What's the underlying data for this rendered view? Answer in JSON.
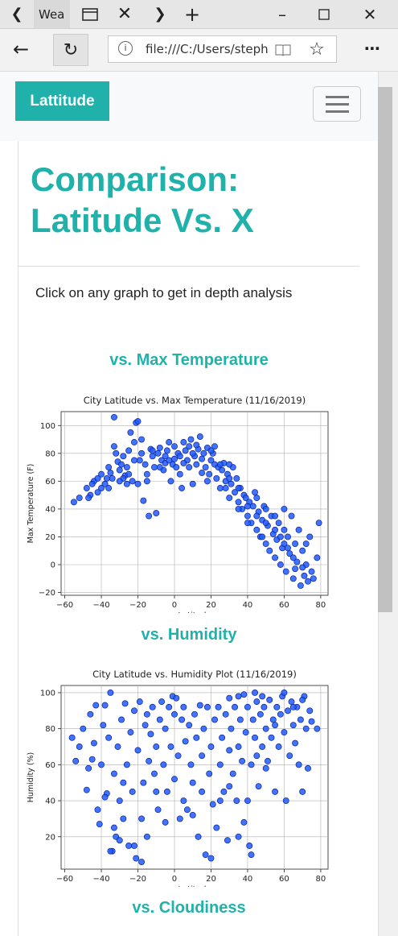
{
  "browser": {
    "tab_title": "Wea",
    "url": "file:///C:/Users/steph"
  },
  "navbar": {
    "brand": "Lattitude"
  },
  "page": {
    "title": "Comparison: Latitude Vs. X",
    "intro": "Click on any graph to get in depth analysis"
  },
  "sections": [
    {
      "heading": "vs. Max Temperature"
    },
    {
      "heading": "vs. Humidity"
    },
    {
      "heading": "vs. Cloudiness"
    }
  ],
  "colors": {
    "accent": "#20b2aa",
    "point": "#1f5cff"
  },
  "chart_data": [
    {
      "type": "scatter",
      "title": "City Latitude vs. Max Temperature (11/16/2019)",
      "xlabel": "Latitude",
      "ylabel": "Max Temperature (F)",
      "xlim": [
        -62,
        84
      ],
      "ylim": [
        -22,
        110
      ],
      "xticks": [
        -60,
        -40,
        -20,
        0,
        20,
        40,
        60,
        80
      ],
      "yticks": [
        -20,
        0,
        20,
        40,
        60,
        80,
        100
      ],
      "grid": true,
      "points": [
        [
          -55,
          45
        ],
        [
          -52,
          48
        ],
        [
          -48,
          55
        ],
        [
          -46,
          50
        ],
        [
          -44,
          60
        ],
        [
          -42,
          62
        ],
        [
          -40,
          65
        ],
        [
          -38,
          58
        ],
        [
          -36,
          70
        ],
        [
          -35,
          66
        ],
        [
          -34,
          62
        ],
        [
          -33,
          106
        ],
        [
          -32,
          80
        ],
        [
          -31,
          74
        ],
        [
          -30,
          68
        ],
        [
          -29,
          72
        ],
        [
          -28,
          78
        ],
        [
          -27,
          64
        ],
        [
          -26,
          70
        ],
        [
          -25,
          82
        ],
        [
          -24,
          95
        ],
        [
          -23,
          60
        ],
        [
          -22,
          88
        ],
        [
          -21,
          102
        ],
        [
          -20,
          103
        ],
        [
          -19,
          75
        ],
        [
          -18,
          80
        ],
        [
          -17,
          46
        ],
        [
          -16,
          72
        ],
        [
          -15,
          65
        ],
        [
          -14,
          35
        ],
        [
          -13,
          83
        ],
        [
          -12,
          78
        ],
        [
          -11,
          70
        ],
        [
          -10,
          37
        ],
        [
          -9,
          80
        ],
        [
          -8,
          84
        ],
        [
          -7,
          75
        ],
        [
          -6,
          68
        ],
        [
          -5,
          78
        ],
        [
          -4,
          82
        ],
        [
          -3,
          88
        ],
        [
          -2,
          60
        ],
        [
          -1,
          72
        ],
        [
          0,
          85
        ],
        [
          1,
          70
        ],
        [
          2,
          80
        ],
        [
          3,
          78
        ],
        [
          4,
          55
        ],
        [
          5,
          88
        ],
        [
          6,
          82
        ],
        [
          7,
          75
        ],
        [
          8,
          85
        ],
        [
          9,
          90
        ],
        [
          10,
          58
        ],
        [
          11,
          78
        ],
        [
          12,
          72
        ],
        [
          13,
          83
        ],
        [
          14,
          92
        ],
        [
          15,
          66
        ],
        [
          16,
          80
        ],
        [
          17,
          70
        ],
        [
          18,
          84
        ],
        [
          19,
          65
        ],
        [
          20,
          75
        ],
        [
          21,
          80
        ],
        [
          22,
          72
        ],
        [
          23,
          62
        ],
        [
          24,
          70
        ],
        [
          25,
          55
        ],
        [
          26,
          68
        ],
        [
          27,
          73
        ],
        [
          28,
          60
        ],
        [
          29,
          65
        ],
        [
          30,
          48
        ],
        [
          31,
          58
        ],
        [
          32,
          70
        ],
        [
          33,
          52
        ],
        [
          34,
          62
        ],
        [
          35,
          45
        ],
        [
          36,
          55
        ],
        [
          37,
          40
        ],
        [
          38,
          50
        ],
        [
          39,
          48
        ],
        [
          40,
          35
        ],
        [
          41,
          45
        ],
        [
          42,
          30
        ],
        [
          43,
          42
        ],
        [
          44,
          52
        ],
        [
          45,
          25
        ],
        [
          46,
          38
        ],
        [
          47,
          20
        ],
        [
          48,
          32
        ],
        [
          49,
          42
        ],
        [
          50,
          15
        ],
        [
          51,
          28
        ],
        [
          52,
          10
        ],
        [
          53,
          35
        ],
        [
          54,
          22
        ],
        [
          55,
          5
        ],
        [
          56,
          18
        ],
        [
          57,
          30
        ],
        [
          58,
          0
        ],
        [
          59,
          12
        ],
        [
          60,
          25
        ],
        [
          61,
          -5
        ],
        [
          62,
          20
        ],
        [
          63,
          8
        ],
        [
          64,
          35
        ],
        [
          65,
          -10
        ],
        [
          66,
          15
        ],
        [
          67,
          2
        ],
        [
          68,
          25
        ],
        [
          69,
          -15
        ],
        [
          70,
          10
        ],
        [
          71,
          -8
        ],
        [
          72,
          0
        ],
        [
          73,
          -12
        ],
        [
          74,
          20
        ],
        [
          75,
          -5
        ],
        [
          76,
          -10
        ],
        [
          78,
          5
        ],
        [
          79,
          30
        ],
        [
          -45,
          58
        ],
        [
          -40,
          55
        ],
        [
          -37,
          62
        ],
        [
          -28,
          62
        ],
        [
          -25,
          65
        ],
        [
          -20,
          58
        ],
        [
          -15,
          60
        ],
        [
          -12,
          82
        ],
        [
          -5,
          73
        ],
        [
          0,
          76
        ],
        [
          5,
          73
        ],
        [
          10,
          80
        ],
        [
          15,
          76
        ],
        [
          20,
          82
        ],
        [
          25,
          72
        ],
        [
          30,
          62
        ],
        [
          35,
          55
        ],
        [
          40,
          42
        ],
        [
          45,
          35
        ],
        [
          50,
          30
        ],
        [
          55,
          25
        ],
        [
          60,
          15
        ],
        [
          65,
          5
        ],
        [
          70,
          -2
        ],
        [
          40,
          30
        ],
        [
          35,
          40
        ],
        [
          50,
          40
        ],
        [
          55,
          35
        ],
        [
          60,
          40
        ],
        [
          45,
          48
        ],
        [
          48,
          20
        ],
        [
          58,
          20
        ],
        [
          62,
          12
        ],
        [
          66,
          -3
        ],
        [
          72,
          15
        ],
        [
          30,
          72
        ],
        [
          28,
          55
        ],
        [
          22,
          85
        ],
        [
          18,
          60
        ],
        [
          12,
          86
        ],
        [
          8,
          70
        ],
        [
          3,
          65
        ],
        [
          -3,
          75
        ],
        [
          -8,
          70
        ],
        [
          -18,
          90
        ],
        [
          -22,
          75
        ],
        [
          -26,
          58
        ],
        [
          -30,
          60
        ],
        [
          -33,
          85
        ],
        [
          -36,
          55
        ],
        [
          -42,
          52
        ],
        [
          -47,
          48
        ]
      ]
    },
    {
      "type": "scatter",
      "title": "City Latitude vs. Humidity Plot (11/16/2019)",
      "xlabel": "Latitude",
      "ylabel": "Humidity (%)",
      "xlim": [
        -62,
        84
      ],
      "ylim": [
        2,
        104
      ],
      "xticks": [
        -60,
        -40,
        -20,
        0,
        20,
        40,
        60,
        80
      ],
      "yticks": [
        20,
        40,
        60,
        80,
        100
      ],
      "grid": true,
      "points": [
        [
          -56,
          75
        ],
        [
          -54,
          62
        ],
        [
          -52,
          70
        ],
        [
          -50,
          80
        ],
        [
          -48,
          46
        ],
        [
          -47,
          58
        ],
        [
          -46,
          88
        ],
        [
          -45,
          63
        ],
        [
          -44,
          72
        ],
        [
          -43,
          93
        ],
        [
          -42,
          35
        ],
        [
          -41,
          27
        ],
        [
          -40,
          60
        ],
        [
          -39,
          82
        ],
        [
          -38,
          93
        ],
        [
          -37,
          44
        ],
        [
          -36,
          75
        ],
        [
          -35,
          100
        ],
        [
          -34,
          12
        ],
        [
          -33,
          55
        ],
        [
          -32,
          20
        ],
        [
          -31,
          70
        ],
        [
          -30,
          40
        ],
        [
          -29,
          85
        ],
        [
          -28,
          30
        ],
        [
          -27,
          94
        ],
        [
          -26,
          60
        ],
        [
          -25,
          15
        ],
        [
          -24,
          78
        ],
        [
          -23,
          45
        ],
        [
          -22,
          90
        ],
        [
          -21,
          8
        ],
        [
          -20,
          68
        ],
        [
          -19,
          95
        ],
        [
          -18,
          30
        ],
        [
          -17,
          50
        ],
        [
          -16,
          82
        ],
        [
          -15,
          88
        ],
        [
          -14,
          62
        ],
        [
          -13,
          77
        ],
        [
          -12,
          92
        ],
        [
          -11,
          55
        ],
        [
          -10,
          70
        ],
        [
          -9,
          35
        ],
        [
          -8,
          85
        ],
        [
          -7,
          95
        ],
        [
          -6,
          60
        ],
        [
          -5,
          80
        ],
        [
          -4,
          45
        ],
        [
          -3,
          92
        ],
        [
          -2,
          70
        ],
        [
          -1,
          98
        ],
        [
          0,
          88
        ],
        [
          1,
          97
        ],
        [
          2,
          65
        ],
        [
          3,
          30
        ],
        [
          4,
          85
        ],
        [
          5,
          92
        ],
        [
          6,
          73
        ],
        [
          7,
          35
        ],
        [
          8,
          82
        ],
        [
          9,
          60
        ],
        [
          10,
          50
        ],
        [
          11,
          88
        ],
        [
          12,
          75
        ],
        [
          13,
          20
        ],
        [
          14,
          93
        ],
        [
          15,
          65
        ],
        [
          16,
          80
        ],
        [
          17,
          10
        ],
        [
          18,
          92
        ],
        [
          19,
          55
        ],
        [
          20,
          70
        ],
        [
          21,
          38
        ],
        [
          22,
          85
        ],
        [
          23,
          25
        ],
        [
          24,
          92
        ],
        [
          25,
          60
        ],
        [
          26,
          75
        ],
        [
          27,
          45
        ],
        [
          28,
          88
        ],
        [
          29,
          18
        ],
        [
          30,
          68
        ],
        [
          31,
          80
        ],
        [
          32,
          55
        ],
        [
          33,
          92
        ],
        [
          34,
          40
        ],
        [
          35,
          70
        ],
        [
          36,
          85
        ],
        [
          37,
          62
        ],
        [
          38,
          28
        ],
        [
          39,
          78
        ],
        [
          40,
          92
        ],
        [
          41,
          15
        ],
        [
          42,
          60
        ],
        [
          43,
          85
        ],
        [
          44,
          75
        ],
        [
          45,
          95
        ],
        [
          46,
          48
        ],
        [
          47,
          88
        ],
        [
          48,
          70
        ],
        [
          49,
          92
        ],
        [
          50,
          80
        ],
        [
          51,
          62
        ],
        [
          52,
          96
        ],
        [
          53,
          75
        ],
        [
          54,
          85
        ],
        [
          55,
          45
        ],
        [
          56,
          92
        ],
        [
          57,
          70
        ],
        [
          58,
          88
        ],
        [
          59,
          98
        ],
        [
          60,
          78
        ],
        [
          61,
          40
        ],
        [
          62,
          90
        ],
        [
          63,
          65
        ],
        [
          64,
          95
        ],
        [
          65,
          82
        ],
        [
          66,
          72
        ],
        [
          67,
          92
        ],
        [
          68,
          60
        ],
        [
          69,
          85
        ],
        [
          70,
          45
        ],
        [
          71,
          98
        ],
        [
          72,
          80
        ],
        [
          73,
          58
        ],
        [
          74,
          90
        ],
        [
          75,
          84
        ],
        [
          78,
          80
        ],
        [
          -38,
          42
        ],
        [
          -35,
          12
        ],
        [
          -33,
          25
        ],
        [
          -30,
          18
        ],
        [
          -28,
          50
        ],
        [
          -22,
          15
        ],
        [
          -18,
          6
        ],
        [
          -15,
          20
        ],
        [
          -10,
          45
        ],
        [
          -5,
          28
        ],
        [
          0,
          52
        ],
        [
          5,
          40
        ],
        [
          10,
          32
        ],
        [
          15,
          45
        ],
        [
          20,
          8
        ],
        [
          25,
          40
        ],
        [
          30,
          48
        ],
        [
          35,
          20
        ],
        [
          40,
          40
        ],
        [
          42,
          10
        ],
        [
          45,
          65
        ],
        [
          50,
          58
        ],
        [
          55,
          82
        ],
        [
          60,
          100
        ],
        [
          65,
          92
        ],
        [
          70,
          96
        ],
        [
          35,
          98
        ],
        [
          30,
          97
        ],
        [
          38,
          99
        ],
        [
          44,
          100
        ],
        [
          48,
          98
        ]
      ]
    }
  ]
}
